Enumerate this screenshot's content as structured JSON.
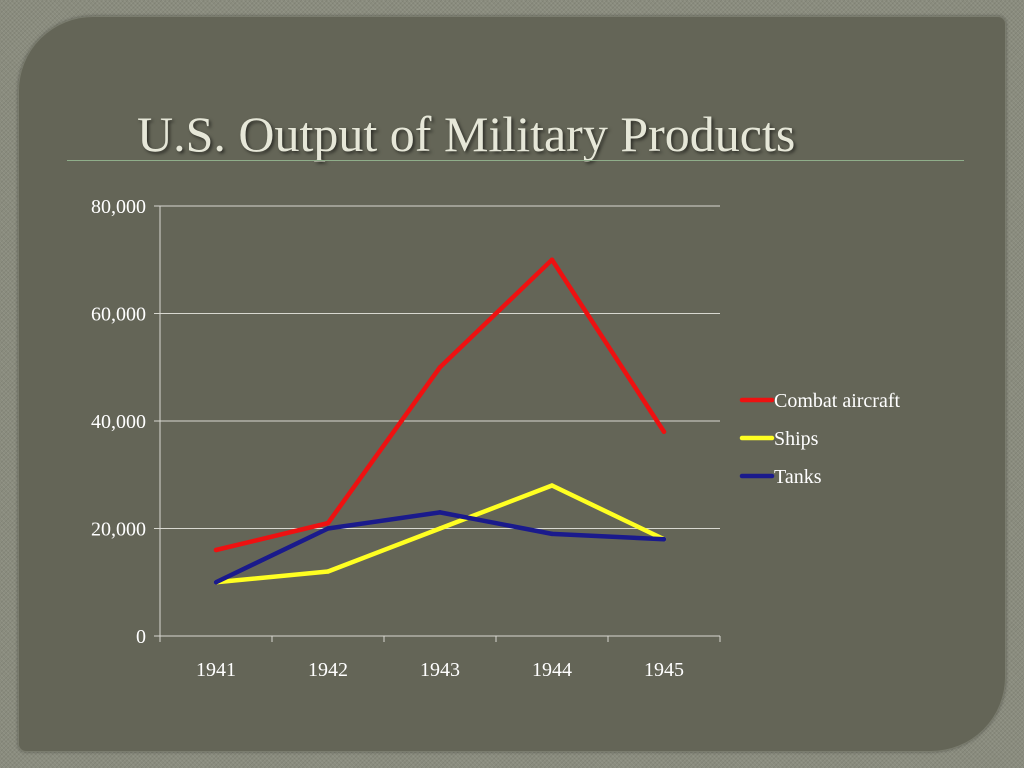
{
  "slide": {
    "title": "U.S. Output of Military Products"
  },
  "chart_data": {
    "type": "line",
    "categories": [
      "1941",
      "1942",
      "1943",
      "1944",
      "1945"
    ],
    "ylim": [
      0,
      80000
    ],
    "yticks": [
      0,
      20000,
      40000,
      60000,
      80000
    ],
    "ytick_labels": [
      "0",
      "20,000",
      "40,000",
      "60,000",
      "80,000"
    ],
    "grid": true,
    "legend_position": "right",
    "series": [
      {
        "name": "Combat aircraft",
        "color": "#ee1111",
        "values": [
          16000,
          21000,
          50000,
          70000,
          38000
        ]
      },
      {
        "name": "Ships",
        "color": "#ffff22",
        "values": [
          10000,
          12000,
          20000,
          28000,
          18000
        ]
      },
      {
        "name": "Tanks",
        "color": "#1a1a8c",
        "values": [
          10000,
          20000,
          23000,
          19000,
          18000
        ]
      }
    ]
  }
}
